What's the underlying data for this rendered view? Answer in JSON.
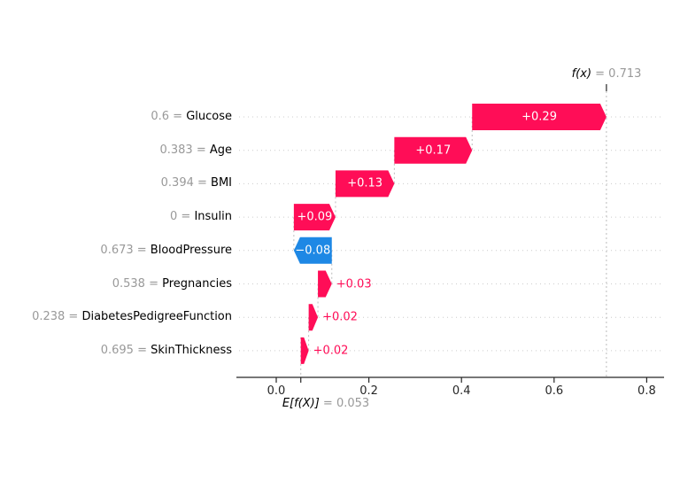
{
  "figure": {
    "background": "#ffffff"
  },
  "chart_data": {
    "type": "bar",
    "subtype": "shap-waterfall",
    "title": "",
    "xlabel": "",
    "ylabel": "",
    "fx_value": 0.713,
    "base_value": 0.053,
    "annotations": {
      "fx": {
        "lhs": "f(x)",
        "rhs": " = 0.713"
      },
      "ef": {
        "lhs": "E[f(X)]",
        "rhs": " = 0.053"
      }
    },
    "x_axis": {
      "tick_labels": [
        "0.0",
        "0.2",
        "0.4",
        "0.6",
        "0.8"
      ],
      "tick_values": [
        0.0,
        0.2,
        0.4,
        0.6,
        0.8
      ],
      "range": [
        -0.08,
        0.85
      ],
      "grid": "dotted-row-lines"
    },
    "legend": "none",
    "features": [
      {
        "name": "Glucose",
        "feature_value": "0.6",
        "contribution_label": "+0.29",
        "contribution": 0.29,
        "start": 0.423,
        "end": 0.713,
        "direction": "positive",
        "label_placement": "inside"
      },
      {
        "name": "Age",
        "feature_value": "0.383",
        "contribution_label": "+0.17",
        "contribution": 0.17,
        "start": 0.255,
        "end": 0.423,
        "direction": "positive",
        "label_placement": "inside"
      },
      {
        "name": "BMI",
        "feature_value": "0.394",
        "contribution_label": "+0.13",
        "contribution": 0.13,
        "start": 0.128,
        "end": 0.255,
        "direction": "positive",
        "label_placement": "inside"
      },
      {
        "name": "Insulin",
        "feature_value": "0",
        "contribution_label": "+0.09",
        "contribution": 0.09,
        "start": 0.038,
        "end": 0.128,
        "direction": "positive",
        "label_placement": "inside"
      },
      {
        "name": "BloodPressure",
        "feature_value": "0.673",
        "contribution_label": "−0.08",
        "contribution": -0.08,
        "start": 0.12,
        "end": 0.038,
        "direction": "negative",
        "label_placement": "inside"
      },
      {
        "name": "Pregnancies",
        "feature_value": "0.538",
        "contribution_label": "+0.03",
        "contribution": 0.03,
        "start": 0.09,
        "end": 0.12,
        "direction": "positive",
        "label_placement": "outside"
      },
      {
        "name": "DiabetesPedigreeFunction",
        "feature_value": "0.238",
        "contribution_label": "+0.02",
        "contribution": 0.02,
        "start": 0.07,
        "end": 0.09,
        "direction": "positive",
        "label_placement": "outside"
      },
      {
        "name": "SkinThickness",
        "feature_value": "0.695",
        "contribution_label": "+0.02",
        "contribution": 0.02,
        "start": 0.053,
        "end": 0.07,
        "direction": "positive",
        "label_placement": "outside"
      }
    ],
    "colors": {
      "positive": "#ff0d57",
      "negative": "#1e88e5",
      "muted_text": "#999999",
      "grid_dotted": "#cccccc",
      "reference_line": "#bbbbbb",
      "axis": "#262626",
      "bar_label_inside": "#ffffff"
    }
  }
}
